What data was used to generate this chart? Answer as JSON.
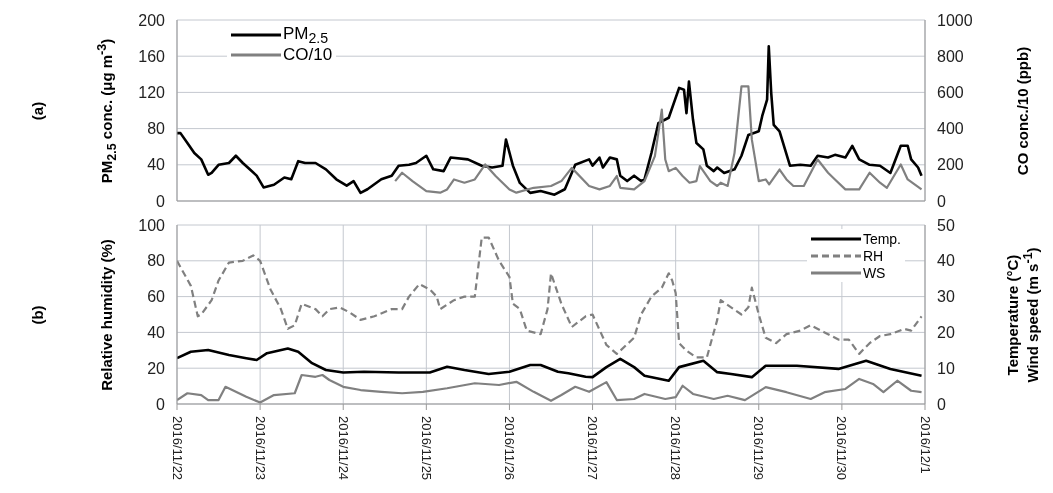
{
  "chart_data": [
    {
      "type": "line",
      "ylabel": "PM$_{2.5}$ conc. (μg m$^{-3}$)",
      "y2label": "CO conc./10 (ppb)",
      "annotations": [
        "(a)"
      ],
      "xlim": [
        "2016-11-22",
        "2016-12-01"
      ],
      "xticks": [
        "2016-11-22",
        "2016-11-23",
        "2016-11-24",
        "2016-11-25",
        "2016-11-26",
        "2016-11-27",
        "2016-11-28",
        "2016-11-29",
        "2016-11-30",
        "2016-12-01"
      ],
      "ylim": [
        0,
        200
      ],
      "yticks": [
        0,
        40,
        80,
        120,
        160,
        200
      ],
      "y2lim": [
        0,
        1000
      ],
      "y2ticks": [
        0,
        200,
        400,
        600,
        800,
        1000
      ],
      "grid": true,
      "legend": "top left",
      "tick_labels": "y",
      "series": [
        {
          "name": "PM$_{2.5}$",
          "color": "#000000",
          "x": [
            "2016-11-22T00:00",
            "2016-11-22T01:00",
            "2016-11-22T03:00",
            "2016-11-22T05:00",
            "2016-11-22T07:00",
            "2016-11-22T09:00",
            "2016-11-22T10:00",
            "2016-11-22T12:00",
            "2016-11-22T15:00",
            "2016-11-22T17:00",
            "2016-11-22T19:00",
            "2016-11-22T21:00",
            "2016-11-22T23:00",
            "2016-11-23T01:00",
            "2016-11-23T04:00",
            "2016-11-23T07:00",
            "2016-11-23T09:00",
            "2016-11-23T11:00",
            "2016-11-23T13:00",
            "2016-11-23T16:00",
            "2016-11-23T19:00",
            "2016-11-23T22:00",
            "2016-11-24T01:00",
            "2016-11-24T03:00",
            "2016-11-24T05:00",
            "2016-11-24T07:00",
            "2016-11-24T11:00",
            "2016-11-24T14:00",
            "2016-11-24T16:00",
            "2016-11-24T19:00",
            "2016-11-24T21:00",
            "2016-11-25T00:00",
            "2016-11-25T02:00",
            "2016-11-25T05:00",
            "2016-11-25T07:00",
            "2016-11-25T12:00",
            "2016-11-25T16:00",
            "2016-11-25T19:00",
            "2016-11-25T22:00",
            "2016-11-25T23:00",
            "2016-11-26T01:00",
            "2016-11-26T03:00",
            "2016-11-26T06:00",
            "2016-11-26T09:00",
            "2016-11-26T13:00",
            "2016-11-26T16:00",
            "2016-11-26T19:00",
            "2016-11-26T23:00",
            "2016-11-27T00:00",
            "2016-11-27T02:00",
            "2016-11-27T03:00",
            "2016-11-27T05:00",
            "2016-11-27T07:00",
            "2016-11-27T08:00",
            "2016-11-27T10:00",
            "2016-11-27T12:00",
            "2016-11-27T14:00",
            "2016-11-27T15:00",
            "2016-11-27T17:00",
            "2016-11-27T19:00",
            "2016-11-27T22:00",
            "2016-11-28T01:00",
            "2016-11-28T02:24",
            "2016-11-28T03:07",
            "2016-11-28T03:50",
            "2016-11-28T05:00",
            "2016-11-28T06:00",
            "2016-11-28T08:00",
            "2016-11-28T09:00",
            "2016-11-28T11:00",
            "2016-11-28T12:00",
            "2016-11-28T14:00",
            "2016-11-28T17:00",
            "2016-11-28T19:00",
            "2016-11-28T21:00",
            "2016-11-29T00:00",
            "2016-11-29T01:00",
            "2016-11-29T02:24",
            "2016-11-29T02:53",
            "2016-11-29T03:36",
            "2016-11-29T04:19",
            "2016-11-29T06:00",
            "2016-11-29T09:00",
            "2016-11-29T12:00",
            "2016-11-29T15:00",
            "2016-11-29T17:00",
            "2016-11-29T20:00",
            "2016-11-29T22:00",
            "2016-11-30T01:00",
            "2016-11-30T03:00",
            "2016-11-30T05:00",
            "2016-11-30T08:00",
            "2016-11-30T11:00",
            "2016-11-30T14:00",
            "2016-11-30T17:00",
            "2016-11-30T19:00",
            "2016-11-30T20:00",
            "2016-11-30T22:00",
            "2016-11-30T23:00"
          ],
          "values": [
            75,
            75,
            64,
            53,
            46,
            29,
            31,
            40,
            42,
            50,
            42,
            35,
            28,
            15,
            18,
            26,
            24,
            44,
            42,
            42,
            35,
            24,
            17,
            22,
            9,
            13,
            24,
            28,
            39,
            40,
            42,
            50,
            35,
            33,
            48,
            46,
            39,
            37,
            39,
            68,
            39,
            20,
            9,
            11,
            7,
            13,
            40,
            46,
            39,
            48,
            37,
            48,
            46,
            28,
            22,
            28,
            22,
            24,
            53,
            86,
            92,
            125,
            123,
            97,
            132,
            90,
            64,
            57,
            39,
            33,
            37,
            31,
            35,
            50,
            73,
            77,
            94,
            112,
            171,
            119,
            84,
            77,
            39,
            40,
            39,
            50,
            48,
            51,
            48,
            61,
            46,
            40,
            39,
            31,
            61,
            61,
            46,
            37,
            28
          ]
        },
        {
          "name": "CO/10",
          "color": "#808080",
          "axis": "y2",
          "x": [
            "2016-11-24T15:00",
            "2016-11-24T17:00",
            "2016-11-24T20:00",
            "2016-11-25T00:00",
            "2016-11-25T04:00",
            "2016-11-25T06:00",
            "2016-11-25T08:00",
            "2016-11-25T11:00",
            "2016-11-25T14:00",
            "2016-11-25T17:00",
            "2016-11-25T20:00",
            "2016-11-26T00:00",
            "2016-11-26T02:00",
            "2016-11-26T07:00",
            "2016-11-26T12:00",
            "2016-11-26T15:00",
            "2016-11-26T18:00",
            "2016-11-26T23:00",
            "2016-11-27T02:00",
            "2016-11-27T05:00",
            "2016-11-27T07:00",
            "2016-11-27T08:00",
            "2016-11-27T12:00",
            "2016-11-27T15:00",
            "2016-11-27T18:00",
            "2016-11-27T20:00",
            "2016-11-27T21:00",
            "2016-11-27T22:00",
            "2016-11-28T00:00",
            "2016-11-28T02:00",
            "2016-11-28T04:00",
            "2016-11-28T06:00",
            "2016-11-28T07:00",
            "2016-11-28T10:00",
            "2016-11-28T12:00",
            "2016-11-28T13:00",
            "2016-11-28T15:00",
            "2016-11-28T17:00",
            "2016-11-28T19:00",
            "2016-11-28T21:00",
            "2016-11-28T22:00",
            "2016-11-29T00:00",
            "2016-11-29T02:00",
            "2016-11-29T03:00",
            "2016-11-29T06:00",
            "2016-11-29T08:00",
            "2016-11-29T10:00",
            "2016-11-29T13:00",
            "2016-11-29T17:00",
            "2016-11-29T20:00",
            "2016-11-29T22:00",
            "2016-11-30T01:00",
            "2016-11-30T05:00",
            "2016-11-30T08:00",
            "2016-11-30T11:00",
            "2016-11-30T13:00",
            "2016-11-30T17:00",
            "2016-11-30T19:00",
            "2016-11-30T23:00"
          ],
          "values": [
            110,
            156,
            110,
            55,
            46,
            64,
            119,
            101,
            119,
            202,
            138,
            64,
            46,
            73,
            83,
            110,
            183,
            83,
            64,
            83,
            138,
            73,
            64,
            110,
            248,
            505,
            229,
            165,
            183,
            138,
            101,
            110,
            193,
            110,
            83,
            101,
            83,
            266,
            633,
            633,
            339,
            110,
            119,
            92,
            174,
            119,
            83,
            83,
            229,
            156,
            119,
            64,
            64,
            156,
            101,
            73,
            202,
            119,
            64
          ]
        }
      ]
    },
    {
      "type": "line",
      "ylabel": "Relative humidity (%)",
      "y2label": "Temperature (°C)\nWind  speed (m s$^{-1}$)",
      "annotations": [
        "(b)"
      ],
      "xlim": [
        "2016-11-22",
        "2016-12-01"
      ],
      "xticks": [
        {
          "value": "2016-11-22",
          "label": "2016/11/22"
        },
        {
          "value": "2016-11-23",
          "label": "2016/11/23"
        },
        {
          "value": "2016-11-24",
          "label": "2016/11/24"
        },
        {
          "value": "2016-11-25",
          "label": "2016/11/25"
        },
        {
          "value": "2016-11-26",
          "label": "2016/11/26"
        },
        {
          "value": "2016-11-27",
          "label": "2016/11/27"
        },
        {
          "value": "2016-11-28",
          "label": "2016/11/28"
        },
        {
          "value": "2016-11-29",
          "label": "2016/11/29"
        },
        {
          "value": "2016-11-30",
          "label": "2016/11/30"
        },
        {
          "value": "2016-12-01",
          "label": "2016/12/1"
        }
      ],
      "ylim": [
        0,
        100
      ],
      "yticks": [
        0,
        20,
        40,
        60,
        80,
        100
      ],
      "y2lim": [
        0,
        50
      ],
      "y2ticks": [
        0,
        10,
        20,
        30,
        40,
        50
      ],
      "grid": true,
      "legend": "top right",
      "series": [
        {
          "name": "Temp.",
          "color": "#000000",
          "axis": "y2",
          "x": [
            "2016-11-22T00:00",
            "2016-11-22T04:00",
            "2016-11-22T09:00",
            "2016-11-22T15:00",
            "2016-11-22T20:00",
            "2016-11-22T23:00",
            "2016-11-23T02:00",
            "2016-11-23T08:00",
            "2016-11-23T11:00",
            "2016-11-23T15:00",
            "2016-11-23T19:00",
            "2016-11-24T00:00",
            "2016-11-24T06:00",
            "2016-11-24T16:00",
            "2016-11-25T01:00",
            "2016-11-25T06:00",
            "2016-11-25T11:00",
            "2016-11-25T18:00",
            "2016-11-26T00:00",
            "2016-11-26T06:00",
            "2016-11-26T09:00",
            "2016-11-26T14:00",
            "2016-11-26T17:00",
            "2016-11-26T22:00",
            "2016-11-27T00:00",
            "2016-11-27T04:00",
            "2016-11-27T08:00",
            "2016-11-27T12:00",
            "2016-11-27T15:00",
            "2016-11-27T22:00",
            "2016-11-28T01:00",
            "2016-11-28T08:00",
            "2016-11-28T12:00",
            "2016-11-28T16:00",
            "2016-11-28T22:00",
            "2016-11-29T02:00",
            "2016-11-29T11:00",
            "2016-11-29T23:00",
            "2016-11-30T07:00",
            "2016-11-30T14:00",
            "2016-11-30T23:00"
          ],
          "values": [
            12.8,
            14.6,
            15.1,
            13.7,
            12.8,
            12.3,
            14.2,
            15.5,
            14.6,
            11.4,
            9.5,
            8.8,
            9.0,
            8.8,
            8.8,
            10.4,
            9.5,
            8.4,
            9.0,
            10.9,
            10.9,
            9.0,
            8.6,
            7.6,
            7.5,
            10.3,
            12.6,
            10.3,
            7.9,
            6.5,
            10.3,
            12.1,
            8.9,
            8.4,
            7.5,
            10.7,
            10.7,
            9.8,
            12.1,
            9.8,
            7.9
          ]
        },
        {
          "name": "RH",
          "color": "#808080",
          "line_style": "dashed",
          "x": [
            "2016-11-22T00:00",
            "2016-11-22T04:00",
            "2016-11-22T06:00",
            "2016-11-22T07:00",
            "2016-11-22T10:00",
            "2016-11-22T12:00",
            "2016-11-22T15:00",
            "2016-11-22T19:00",
            "2016-11-22T22:00",
            "2016-11-23T00:00",
            "2016-11-23T03:00",
            "2016-11-23T06:00",
            "2016-11-23T08:00",
            "2016-11-23T10:00",
            "2016-11-23T12:00",
            "2016-11-23T16:00",
            "2016-11-23T18:00",
            "2016-11-23T20:00",
            "2016-11-23T23:00",
            "2016-11-24T02:00",
            "2016-11-24T05:00",
            "2016-11-24T09:00",
            "2016-11-24T14:00",
            "2016-11-24T17:00",
            "2016-11-24T19:00",
            "2016-11-24T22:00",
            "2016-11-25T01:00",
            "2016-11-25T03:00",
            "2016-11-25T04:00",
            "2016-11-25T08:00",
            "2016-11-25T11:00",
            "2016-11-25T14:00",
            "2016-11-25T16:00",
            "2016-11-25T18:00",
            "2016-11-25T21:00",
            "2016-11-26T00:00",
            "2016-11-26T01:00",
            "2016-11-26T03:00",
            "2016-11-26T05:00",
            "2016-11-26T09:00",
            "2016-11-26T11:00",
            "2016-11-26T12:00",
            "2016-11-26T15:00",
            "2016-11-26T18:00",
            "2016-11-26T22:00",
            "2016-11-27T00:00",
            "2016-11-27T04:00",
            "2016-11-27T07:00",
            "2016-11-27T12:00",
            "2016-11-27T14:00",
            "2016-11-27T17:00",
            "2016-11-27T20:00",
            "2016-11-27T22:00",
            "2016-11-27T23:00",
            "2016-11-28T00:00",
            "2016-11-28T01:00",
            "2016-11-28T03:00",
            "2016-11-28T06:00",
            "2016-11-28T09:00",
            "2016-11-28T12:00",
            "2016-11-28T13:00",
            "2016-11-28T16:00",
            "2016-11-28T19:00",
            "2016-11-28T21:00",
            "2016-11-28T22:00",
            "2016-11-29T00:00",
            "2016-11-29T02:00",
            "2016-11-29T05:00",
            "2016-11-29T08:00",
            "2016-11-29T12:00",
            "2016-11-29T15:00",
            "2016-11-29T19:00",
            "2016-11-29T23:00",
            "2016-11-30T02:00",
            "2016-11-30T05:00",
            "2016-11-30T08:00",
            "2016-11-30T11:00",
            "2016-11-30T14:00",
            "2016-11-30T18:00",
            "2016-11-30T20:00",
            "2016-11-30T23:00"
          ],
          "values": [
            80,
            66,
            49,
            50,
            58,
            69,
            79,
            80,
            83,
            80,
            64,
            53,
            42,
            44,
            56,
            53,
            49,
            53,
            54,
            51,
            47,
            49,
            53,
            53,
            60,
            67,
            64,
            60,
            53,
            58,
            60,
            60,
            93,
            93,
            80,
            71,
            56,
            53,
            41,
            39,
            53,
            73,
            56,
            43,
            49,
            50,
            33,
            28,
            37,
            50,
            60,
            65,
            73,
            69,
            62,
            34,
            30,
            26,
            26,
            47,
            58,
            54,
            50,
            54,
            65,
            50,
            37,
            34,
            39,
            41,
            44,
            40,
            36,
            36,
            28,
            34,
            38,
            39,
            42,
            41,
            49
          ]
        },
        {
          "name": "WS",
          "color": "#808080",
          "axis": "y2",
          "x": [
            "2016-11-22T00:00",
            "2016-11-22T03:00",
            "2016-11-22T07:00",
            "2016-11-22T09:00",
            "2016-11-22T12:00",
            "2016-11-22T14:00",
            "2016-11-22T17:00",
            "2016-11-22T20:00",
            "2016-11-23T00:00",
            "2016-11-23T04:00",
            "2016-11-23T10:00",
            "2016-11-23T12:00",
            "2016-11-23T16:00",
            "2016-11-23T18:00",
            "2016-11-23T20:00",
            "2016-11-24T00:00",
            "2016-11-24T05:00",
            "2016-11-24T11:00",
            "2016-11-24T17:00",
            "2016-11-24T23:00",
            "2016-11-25T06:00",
            "2016-11-25T14:00",
            "2016-11-25T21:00",
            "2016-11-26T02:00",
            "2016-11-26T07:00",
            "2016-11-26T12:00",
            "2016-11-26T15:00",
            "2016-11-26T19:00",
            "2016-11-26T23:00",
            "2016-11-27T04:00",
            "2016-11-27T07:00",
            "2016-11-27T12:00",
            "2016-11-27T15:00",
            "2016-11-27T21:00",
            "2016-11-28T00:00",
            "2016-11-28T02:00",
            "2016-11-28T05:00",
            "2016-11-28T11:00",
            "2016-11-28T15:00",
            "2016-11-28T20:00",
            "2016-11-29T02:00",
            "2016-11-29T08:00",
            "2016-11-29T15:00",
            "2016-11-29T19:00",
            "2016-11-30T01:00",
            "2016-11-30T05:00",
            "2016-11-30T09:00",
            "2016-11-30T12:00",
            "2016-11-30T16:00",
            "2016-11-30T20:00",
            "2016-11-30T23:00"
          ],
          "values": [
            1.1,
            3.0,
            2.5,
            1.1,
            1.1,
            4.8,
            3.4,
            2.0,
            0.4,
            2.5,
            3.0,
            8.1,
            7.6,
            8.1,
            6.7,
            4.8,
            3.9,
            3.4,
            3.0,
            3.4,
            4.4,
            5.8,
            5.3,
            6.2,
            3.4,
            0.9,
            2.5,
            4.8,
            3.4,
            6.1,
            1.1,
            1.4,
            2.8,
            1.4,
            1.9,
            5.1,
            2.8,
            1.4,
            2.3,
            1.1,
            4.7,
            3.3,
            1.4,
            3.3,
            4.2,
            7.0,
            5.6,
            3.3,
            6.5,
            3.7,
            3.3
          ]
        }
      ]
    }
  ]
}
